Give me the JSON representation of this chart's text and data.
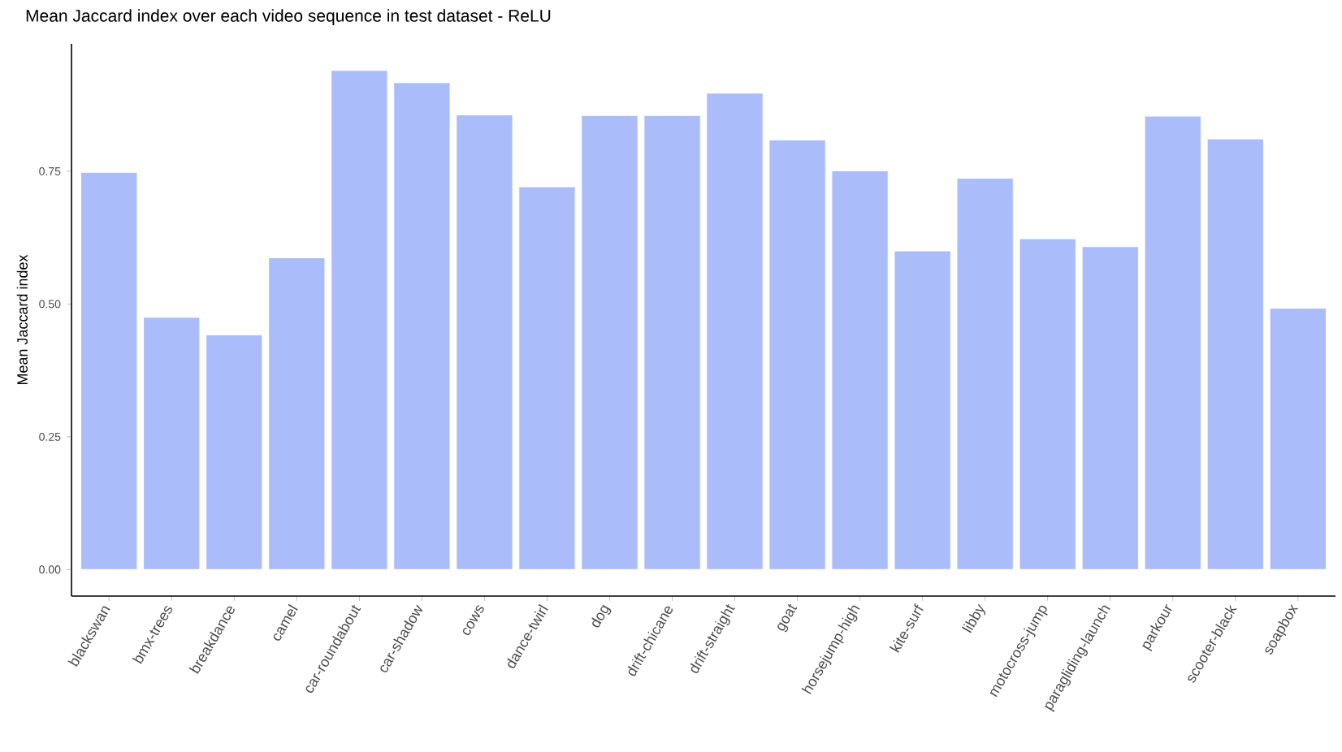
{
  "chart_data": {
    "type": "bar",
    "title": "Mean Jaccard index over each video sequence in test dataset - ReLU",
    "ylabel": "Mean Jaccard index",
    "categories": [
      "blackswan",
      "bmx-trees",
      "breakdance",
      "camel",
      "car-roundabout",
      "car-shadow",
      "cows",
      "dance-twirl",
      "dog",
      "drift-chicane",
      "drift-straight",
      "goat",
      "horsejump-high",
      "kite-surf",
      "libby",
      "motocross-jump",
      "paragliding-launch",
      "parkour",
      "scooter-black",
      "soapbox"
    ],
    "values": [
      0.748,
      0.475,
      0.442,
      0.587,
      0.94,
      0.917,
      0.856,
      0.721,
      0.855,
      0.855,
      0.897,
      0.809,
      0.751,
      0.6,
      0.737,
      0.623,
      0.608,
      0.854,
      0.811,
      0.492
    ],
    "color": "#aabcfa",
    "ylim": [
      -0.05,
      0.99
    ],
    "yticks": [
      {
        "value": 0,
        "label": "0.00"
      },
      {
        "value": 0.25,
        "label": "0.25"
      },
      {
        "value": 0.5,
        "label": "0.50"
      },
      {
        "value": 0.75,
        "label": "0.75"
      }
    ],
    "grid": false
  }
}
